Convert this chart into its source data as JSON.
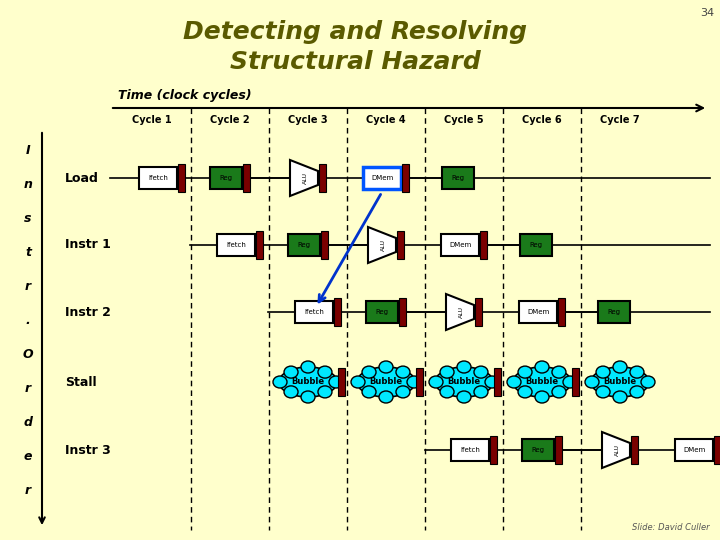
{
  "title_line1": "Detecting and Resolving",
  "title_line2": "Structural Hazard",
  "title_color": "#5a5a00",
  "bg_color": "#ffffcc",
  "slide_number": "34",
  "time_label": "Time (clock cycles)",
  "cycle_labels": [
    "Cycle 1",
    "Cycle 2",
    "Cycle 3",
    "Cycle 4",
    "Cycle 5",
    "Cycle 6",
    "Cycle 7"
  ],
  "instr_labels": [
    "Load",
    "Instr 1",
    "Instr 2",
    "Stall",
    "Instr 3"
  ],
  "credit": "Slide: David Culler",
  "bar_color": "#7a0000",
  "reg_fill": "#1a7a1a",
  "bubble_fill": "#00e8ff",
  "load_dmem_outline": "#0055ff"
}
